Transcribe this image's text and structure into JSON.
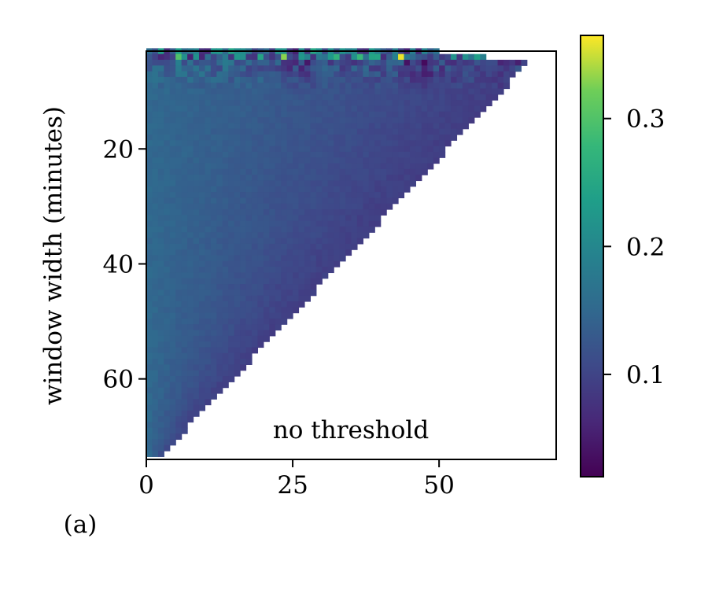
{
  "chart_data": {
    "type": "heatmap",
    "panel_label": "(a)",
    "annotation": "no threshold",
    "xlabel": "",
    "ylabel": "window width (minutes)",
    "xlim": [
      0,
      70
    ],
    "ylim": [
      74,
      3
    ],
    "xticks": [
      0,
      25,
      50
    ],
    "yticks": [
      20,
      40,
      60
    ],
    "colorbar": {
      "colormap": "viridis",
      "range": [
        0.02,
        0.365
      ],
      "ticks": [
        0.1,
        0.2,
        0.3
      ]
    },
    "grid": false,
    "triangle_edge": [
      [
        3,
        67
      ],
      [
        74,
        2
      ]
    ],
    "value_profile": {
      "base_near_x0": 0.15,
      "base_far_right": 0.09,
      "top_rows_range": [
        0.05,
        0.36
      ],
      "bright_cells": [
        [
          5,
          4,
          0.3
        ],
        [
          23,
          4,
          0.33
        ],
        [
          43,
          4,
          0.36
        ],
        [
          32,
          4,
          0.27
        ],
        [
          36,
          4,
          0.28
        ]
      ],
      "dark_streaks_x": [
        24,
        27,
        45,
        47
      ]
    }
  }
}
